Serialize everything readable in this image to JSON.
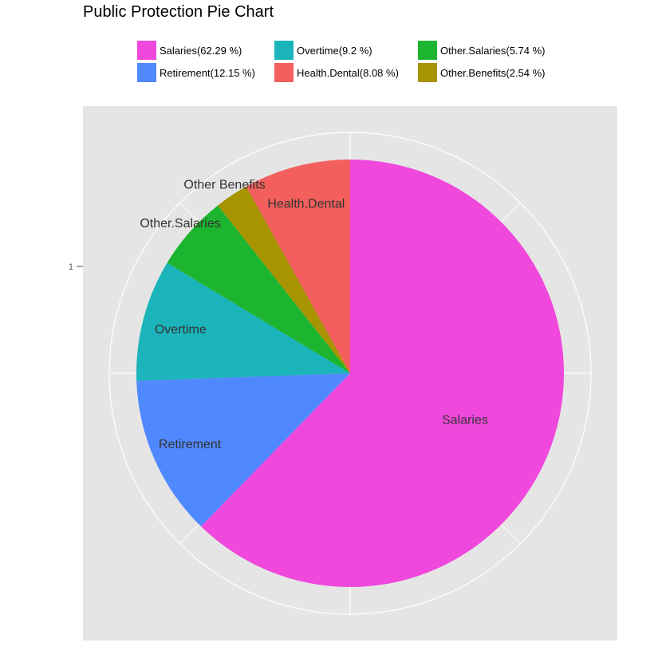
{
  "chart_data": {
    "type": "pie",
    "title": "Public Protection Pie Chart",
    "legend_position": "top",
    "y_tick_label": "1",
    "slices": [
      {
        "category": "Salaries",
        "value": 62.29,
        "legend": "Salaries(62.29 %)",
        "label": "Salaries",
        "color": "#F048DC"
      },
      {
        "category": "Retirement",
        "value": 12.15,
        "legend": "Retirement(12.15 %)",
        "label": "Retirement",
        "color": "#5088FF"
      },
      {
        "category": "Overtime",
        "value": 9.2,
        "legend": "Overtime(9.2 %)",
        "label": "Overtime",
        "color": "#1BB4BA"
      },
      {
        "category": "Other.Salaries",
        "value": 5.74,
        "legend": "Other.Salaries(5.74 %)",
        "label": "Other.Salaries",
        "color": "#1DB430"
      },
      {
        "category": "Other.Benefits",
        "value": 2.54,
        "legend": "Other.Benefits(2.54 %)",
        "label": "Other Benefits",
        "color": "#A89300"
      },
      {
        "category": "Health.Dental",
        "value": 8.08,
        "legend": "Health.Dental(8.08 %)",
        "label": "Health.Dental",
        "color": "#F25F5C"
      }
    ]
  },
  "legend_order": [
    "Salaries",
    "Overtime",
    "Other.Salaries",
    "Retirement",
    "Health.Dental",
    "Other.Benefits"
  ]
}
